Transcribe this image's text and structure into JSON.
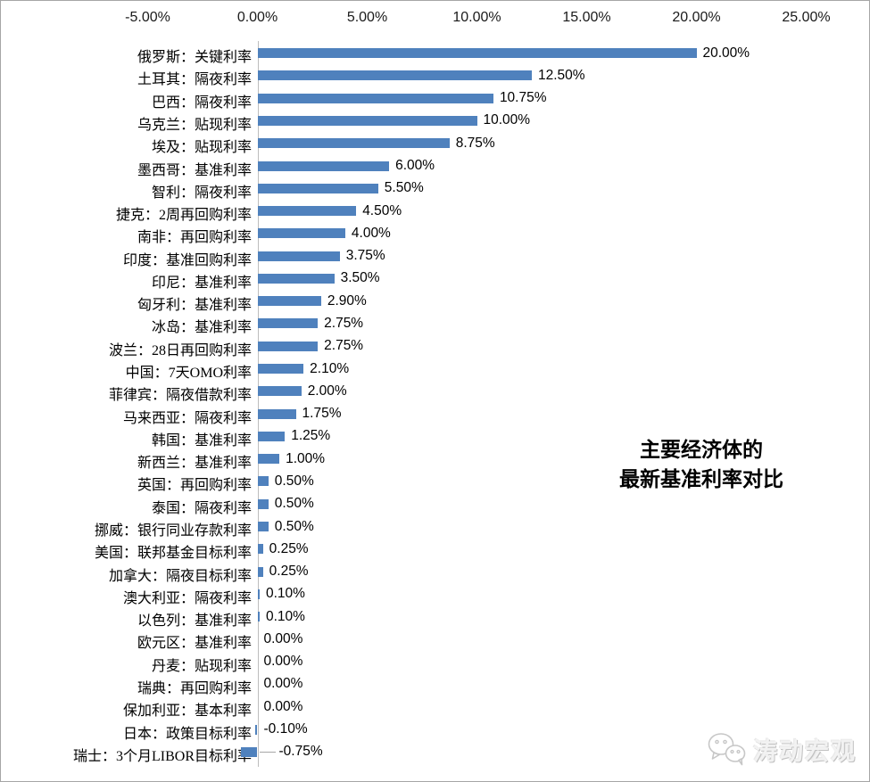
{
  "chart_data": {
    "type": "bar",
    "orientation": "horizontal",
    "title_lines": [
      "主要经济体的",
      "最新基准利率对比"
    ],
    "categories": [
      "俄罗斯：关键利率",
      "土耳其：隔夜利率",
      "巴西：隔夜利率",
      "乌克兰：贴现利率",
      "埃及：贴现利率",
      "墨西哥：基准利率",
      "智利：隔夜利率",
      "捷克：2周再回购利率",
      "南非：再回购利率",
      "印度：基准回购利率",
      "印尼：基准利率",
      "匈牙利：基准利率",
      "冰岛：基准利率",
      "波兰：28日再回购利率",
      "中国：7天OMO利率",
      "菲律宾：隔夜借款利率",
      "马来西亚：隔夜利率",
      "韩国：基准利率",
      "新西兰：基准利率",
      "英国：再回购利率",
      "泰国：隔夜利率",
      "挪威：银行同业存款利率",
      "美国：联邦基金目标利率",
      "加拿大：隔夜目标利率",
      "澳大利亚：隔夜利率",
      "以色列：基准利率",
      "欧元区：基准利率",
      "丹麦：贴现利率",
      "瑞典：再回购利率",
      "保加利亚：基本利率",
      "日本：政策目标利率",
      "瑞士：3个月LIBOR目标利率"
    ],
    "values": [
      20.0,
      12.5,
      10.75,
      10.0,
      8.75,
      6.0,
      5.5,
      4.5,
      4.0,
      3.75,
      3.5,
      2.9,
      2.75,
      2.75,
      2.1,
      2.0,
      1.75,
      1.25,
      1.0,
      0.5,
      0.5,
      0.5,
      0.25,
      0.25,
      0.1,
      0.1,
      0.0,
      0.0,
      0.0,
      0.0,
      -0.1,
      -0.75
    ],
    "value_labels": [
      "20.00%",
      "12.50%",
      "10.75%",
      "10.00%",
      "8.75%",
      "6.00%",
      "5.50%",
      "4.50%",
      "4.00%",
      "3.75%",
      "3.50%",
      "2.90%",
      "2.75%",
      "2.75%",
      "2.10%",
      "2.00%",
      "1.75%",
      "1.25%",
      "1.00%",
      "0.50%",
      "0.50%",
      "0.50%",
      "0.25%",
      "0.25%",
      "0.10%",
      "0.10%",
      "0.00%",
      "0.00%",
      "0.00%",
      "0.00%",
      "-0.10%",
      "-0.75%"
    ],
    "x_ticks": [
      "-5.00%",
      "0.00%",
      "5.00%",
      "10.00%",
      "15.00%",
      "20.00%",
      "25.00%"
    ],
    "x_tick_values": [
      -5,
      0,
      5,
      10,
      15,
      20,
      25
    ],
    "xlim": [
      -5,
      25
    ],
    "xlabel": "",
    "ylabel": "",
    "grid": false,
    "legend": "none",
    "bar_color": "#4F81BD",
    "axis_line_color": "#bdbdbd",
    "leader_line_color": "#a6a6a6"
  },
  "watermark": {
    "text": "涛动宏观",
    "icon": "wechat-icon"
  }
}
